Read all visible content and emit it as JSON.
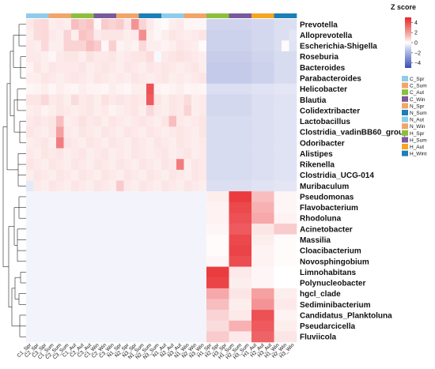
{
  "chart_data": {
    "type": "heatmap",
    "title": "",
    "xlabel": "",
    "ylabel": "",
    "legend": {
      "title": "Z score",
      "ticks": [
        4,
        2,
        0,
        -2,
        -4
      ],
      "range": [
        -5,
        5
      ],
      "placement": "top-right"
    },
    "group_legend": {
      "placement": "right",
      "items": [
        {
          "label": "C_Spr",
          "color": "#8ecde9"
        },
        {
          "label": "C_Sum",
          "color": "#f2a56a"
        },
        {
          "label": "C_Aut",
          "color": "#8bbf3c"
        },
        {
          "label": "C_Win",
          "color": "#7a5a9c"
        },
        {
          "label": "N_Spr",
          "color": "#f2a56a"
        },
        {
          "label": "N_Sum",
          "color": "#1b7fb8"
        },
        {
          "label": "N_Aut",
          "color": "#8ecde9"
        },
        {
          "label": "N_Win",
          "color": "#f2a56a"
        },
        {
          "label": "H_Spr",
          "color": "#8bbf3c"
        },
        {
          "label": "H_Sum",
          "color": "#7a5a9c"
        },
        {
          "label": "H_Aut",
          "color": "#f5a623"
        },
        {
          "label": "H_Wint",
          "color": "#1b7fb8"
        }
      ]
    },
    "group_bar_colors": [
      "#8ecde9",
      "#f2a56a",
      "#8bbf3c",
      "#7a5a9c",
      "#f2a56a",
      "#1b7fb8",
      "#8ecde9",
      "#f2a56a",
      "#8bbf3c",
      "#7a5a9c",
      "#f5a623",
      "#1b7fb8"
    ],
    "columns": [
      "C1_Spr",
      "C2_Spr",
      "C3_Spr",
      "C1_Sum",
      "C2_Sum",
      "C3_Sum",
      "C1_Aut",
      "C2_Aut",
      "C3_Aut",
      "C1_Win",
      "C2_Win",
      "C3_Win",
      "N1_Spr",
      "N2_Spr",
      "N3_Spr",
      "N1_Sum",
      "N2_Sum",
      "N3_Sum",
      "N1_Aut",
      "N2_Aut",
      "N3_Aut",
      "N1_Win",
      "N2_Win",
      "N3_Win",
      "H1_Spr",
      "H2_Spr",
      "H3_Spr",
      "H1_Sum",
      "H2_Sum",
      "H3_Sum",
      "H1_Aut",
      "H2_Aut",
      "H3_Aut",
      "H1_Win",
      "H2_Win",
      "H3_Win"
    ],
    "rows": [
      "Prevotella",
      "Alloprevotella",
      "Escherichia-Shigella",
      "Roseburia",
      "Bacteroides",
      "Parabacteroides",
      "Helicobacter",
      "Blautia",
      "Colidextribacter",
      "Lactobacillus",
      "Clostridia_vadinBB60_group",
      "Odoribacter",
      "Alistipes",
      "Rikenella",
      "Clostridia_UCG-014",
      "Muribaculum",
      "Pseudomonas",
      "Flavobacterium",
      "Rhodoluna",
      "Acinetobacter",
      "Massilia",
      "Cloacibacterium",
      "Novosphingobium",
      "Limnohabitans",
      "Polynucleobacter",
      "hgcl_clade",
      "Sediminibacterium",
      "Candidatus_Planktoluna",
      "Pseudarcicella",
      "Fluviicola"
    ],
    "values": [
      [
        0.5,
        0.8,
        0.9,
        0.4,
        0.5,
        0.4,
        1.5,
        1.2,
        1.4,
        0.2,
        1.2,
        1.0,
        1.2,
        0.6,
        2.5,
        1.0,
        0.5,
        0.2,
        0.1,
        0.4,
        0.5,
        0.2,
        0.2,
        0.2,
        -1.2,
        -1.2,
        -1.2,
        -1.2,
        -1.2,
        -1.2,
        -1.1,
        -1.1,
        -1.1,
        -0.9,
        -0.9,
        -0.9
      ],
      [
        0.4,
        0.8,
        0.9,
        0.5,
        0.4,
        1.0,
        0.4,
        1.4,
        1.2,
        0.5,
        0.6,
        0.6,
        0.6,
        0.4,
        0.5,
        2.6,
        0.4,
        0.2,
        0.4,
        0.6,
        0.5,
        0.4,
        0.5,
        0.6,
        -1.3,
        -1.3,
        -1.3,
        -1.3,
        -1.3,
        -1.3,
        -1.1,
        -1.1,
        -1.1,
        -0.9,
        -0.9,
        -0.7
      ],
      [
        0.5,
        0.4,
        0.9,
        0.4,
        0.4,
        1.0,
        1.0,
        1.0,
        1.5,
        1.2,
        0.2,
        1.1,
        0.3,
        0.4,
        0.3,
        0.9,
        0.4,
        0.4,
        0.3,
        0.4,
        0.6,
        0.5,
        0.4,
        0.1,
        -1.3,
        -1.3,
        -1.3,
        -1.3,
        -1.3,
        -1.3,
        -1.1,
        -1.1,
        -1.1,
        -0.9,
        0.1,
        -0.8
      ],
      [
        0.5,
        0.5,
        0.4,
        0.2,
        0.5,
        0.6,
        0.6,
        0.4,
        0.7,
        0.5,
        0.5,
        0.6,
        0.4,
        0.5,
        0.6,
        0.6,
        0.8,
        -0.2,
        0.5,
        0.6,
        0.7,
        0.6,
        0.5,
        0.4,
        -1.4,
        -1.4,
        -1.4,
        -1.4,
        -1.4,
        -1.4,
        -1.2,
        -1.2,
        -1.2,
        -1.0,
        -1.0,
        -1.0
      ],
      [
        0.3,
        0.6,
        0.4,
        0.6,
        0.5,
        0.5,
        0.5,
        0.6,
        0.4,
        0.5,
        0.6,
        0.5,
        0.4,
        0.6,
        0.5,
        0.4,
        0.6,
        0.5,
        0.6,
        0.5,
        0.4,
        0.5,
        0.6,
        0.4,
        -1.5,
        -1.5,
        -1.5,
        -1.5,
        -1.5,
        -1.5,
        -1.3,
        -1.3,
        -1.3,
        -1.0,
        -1.0,
        -1.0
      ],
      [
        0.4,
        0.4,
        0.6,
        0.5,
        0.4,
        0.5,
        0.6,
        0.5,
        0.4,
        0.6,
        0.5,
        0.4,
        0.5,
        0.4,
        0.6,
        0.5,
        0.4,
        0.5,
        0.6,
        0.4,
        0.5,
        0.4,
        0.5,
        0.6,
        -1.5,
        -1.5,
        -1.5,
        -1.5,
        -1.5,
        -1.5,
        -1.3,
        -1.3,
        -1.3,
        -1.0,
        -1.0,
        -1.0
      ],
      [
        0.2,
        0.3,
        0.4,
        0.2,
        0.4,
        0.3,
        0.2,
        0.4,
        0.3,
        0.3,
        0.2,
        0.4,
        0.3,
        0.2,
        0.4,
        0.4,
        4.0,
        0.3,
        0.2,
        0.3,
        0.4,
        0.2,
        0.3,
        0.2,
        -0.9,
        -0.9,
        -0.9,
        -0.9,
        -0.9,
        -0.9,
        -0.8,
        -0.8,
        -0.8,
        -0.7,
        -0.7,
        -0.7
      ],
      [
        0.6,
        0.6,
        0.9,
        0.5,
        0.6,
        0.4,
        0.8,
        0.5,
        0.6,
        0.4,
        0.7,
        0.5,
        0.6,
        0.5,
        0.6,
        0.5,
        3.8,
        0.6,
        0.4,
        0.6,
        0.5,
        0.8,
        0.4,
        0.5,
        -1.1,
        -1.1,
        -1.1,
        -1.1,
        -1.1,
        -1.1,
        -0.9,
        -0.9,
        -0.9,
        -0.8,
        -0.8,
        -0.8
      ],
      [
        0.4,
        0.5,
        0.3,
        0.4,
        0.6,
        0.5,
        0.4,
        0.5,
        0.6,
        0.4,
        0.5,
        0.3,
        0.4,
        0.5,
        0.6,
        0.4,
        0.9,
        0.5,
        0.4,
        0.6,
        0.5,
        1.0,
        0.4,
        0.5,
        -1.1,
        -1.1,
        -1.1,
        -1.1,
        -1.1,
        -1.1,
        -0.9,
        -0.9,
        -0.9,
        -0.8,
        -0.8,
        -0.8
      ],
      [
        0.5,
        0.6,
        0.5,
        0.6,
        1.5,
        0.4,
        0.5,
        0.7,
        0.5,
        0.6,
        0.4,
        0.6,
        0.5,
        0.4,
        0.5,
        0.6,
        0.5,
        0.4,
        0.6,
        1.5,
        0.5,
        0.4,
        0.5,
        0.6,
        -1.0,
        -1.0,
        -1.0,
        -1.0,
        -1.0,
        -1.0,
        -0.9,
        -0.9,
        -0.9,
        -0.8,
        -0.8,
        -0.8
      ],
      [
        0.6,
        0.5,
        0.4,
        0.6,
        2.2,
        0.5,
        0.4,
        0.6,
        0.5,
        0.4,
        0.6,
        0.5,
        0.4,
        0.6,
        0.5,
        0.4,
        0.6,
        0.5,
        0.4,
        0.5,
        0.6,
        0.5,
        0.4,
        0.6,
        -1.0,
        -1.0,
        -1.0,
        -1.0,
        -1.0,
        -1.0,
        -0.9,
        -0.9,
        -0.9,
        -0.8,
        -0.8,
        -0.8
      ],
      [
        0.4,
        0.5,
        0.6,
        0.4,
        3.0,
        0.6,
        0.5,
        0.4,
        0.6,
        0.5,
        0.4,
        0.6,
        0.5,
        0.4,
        0.6,
        0.5,
        0.4,
        0.6,
        0.5,
        0.4,
        0.6,
        0.5,
        0.4,
        0.5,
        -1.0,
        -1.0,
        -1.0,
        -1.0,
        -1.0,
        -1.0,
        -0.9,
        -0.9,
        -0.9,
        -0.8,
        -0.8,
        -0.8
      ],
      [
        0.5,
        0.4,
        0.6,
        0.5,
        0.6,
        0.4,
        0.5,
        0.6,
        0.4,
        0.5,
        0.6,
        0.4,
        0.5,
        0.4,
        0.6,
        0.5,
        0.4,
        0.5,
        0.6,
        0.4,
        0.5,
        0.6,
        0.4,
        0.5,
        -1.0,
        -1.0,
        -1.0,
        -1.0,
        -1.0,
        -1.0,
        -0.9,
        -0.9,
        -0.9,
        -0.8,
        -0.8,
        -0.8
      ],
      [
        0.6,
        0.5,
        0.4,
        0.6,
        0.5,
        0.4,
        0.6,
        0.5,
        0.4,
        0.6,
        0.5,
        0.4,
        0.6,
        0.5,
        0.4,
        0.6,
        0.5,
        0.4,
        0.6,
        0.5,
        3.0,
        0.4,
        0.6,
        0.5,
        -1.0,
        -1.0,
        -1.0,
        -1.0,
        -1.0,
        -1.0,
        -0.9,
        -0.9,
        -0.9,
        -0.8,
        -0.8,
        -0.8
      ],
      [
        0.4,
        0.6,
        0.5,
        0.4,
        0.6,
        0.5,
        0.4,
        0.6,
        0.5,
        0.4,
        0.6,
        0.5,
        0.4,
        0.6,
        0.5,
        0.4,
        0.6,
        0.5,
        0.4,
        0.6,
        0.5,
        0.4,
        0.6,
        0.5,
        -1.0,
        -1.0,
        -1.0,
        -1.0,
        -1.0,
        -1.0,
        -0.9,
        -0.9,
        -0.9,
        -0.8,
        -0.8,
        -0.8
      ],
      [
        -0.6,
        0.5,
        0.4,
        0.6,
        0.5,
        0.4,
        0.6,
        0.5,
        0.4,
        0.6,
        0.5,
        0.4,
        1.2,
        0.5,
        0.4,
        0.6,
        0.5,
        0.4,
        0.6,
        0.5,
        0.4,
        0.6,
        0.5,
        0.4,
        -0.9,
        -0.9,
        -0.9,
        -0.9,
        -0.9,
        -0.9,
        -0.8,
        -0.8,
        -0.8,
        -0.7,
        -0.7,
        -0.7
      ],
      [
        -0.3,
        -0.3,
        -0.3,
        -0.3,
        -0.3,
        -0.3,
        -0.3,
        -0.3,
        -0.3,
        -0.3,
        -0.3,
        -0.3,
        -0.3,
        -0.3,
        -0.3,
        -0.3,
        -0.3,
        -0.3,
        -0.3,
        -0.3,
        -0.3,
        -0.3,
        -0.3,
        -0.3,
        0.4,
        0.4,
        0.4,
        4.5,
        4.5,
        4.5,
        1.5,
        1.5,
        1.5,
        0.2,
        0.2,
        0.2
      ],
      [
        -0.3,
        -0.3,
        -0.3,
        -0.3,
        -0.3,
        -0.3,
        -0.3,
        -0.3,
        -0.3,
        -0.3,
        -0.3,
        -0.3,
        -0.3,
        -0.3,
        -0.3,
        -0.3,
        -0.3,
        -0.3,
        -0.3,
        -0.3,
        -0.3,
        -0.3,
        -0.3,
        -0.3,
        0.3,
        0.3,
        0.3,
        4.2,
        4.2,
        4.2,
        1.8,
        1.8,
        1.8,
        0.2,
        0.2,
        0.2
      ],
      [
        -0.3,
        -0.3,
        -0.3,
        -0.3,
        -0.3,
        -0.3,
        -0.3,
        -0.3,
        -0.3,
        -0.3,
        -0.3,
        -0.3,
        -0.3,
        -0.3,
        -0.3,
        -0.3,
        -0.3,
        -0.3,
        -0.3,
        -0.3,
        -0.3,
        -0.3,
        -0.3,
        -0.3,
        0.3,
        0.3,
        0.3,
        4.0,
        4.0,
        4.0,
        2.0,
        2.0,
        2.0,
        0.3,
        0.3,
        0.3
      ],
      [
        -0.3,
        -0.3,
        -0.3,
        -0.3,
        -0.3,
        -0.3,
        -0.3,
        -0.3,
        -0.3,
        -0.3,
        -0.3,
        -0.3,
        -0.3,
        -0.3,
        -0.3,
        -0.3,
        -0.3,
        -0.3,
        -0.3,
        -0.3,
        -0.3,
        -0.3,
        -0.3,
        -0.3,
        0.2,
        0.2,
        0.2,
        3.8,
        3.8,
        3.8,
        0.6,
        0.6,
        0.6,
        1.2,
        1.2,
        1.2
      ],
      [
        -0.3,
        -0.3,
        -0.3,
        -0.3,
        -0.3,
        -0.3,
        -0.3,
        -0.3,
        -0.3,
        -0.3,
        -0.3,
        -0.3,
        -0.3,
        -0.3,
        -0.3,
        -0.3,
        -0.3,
        -0.3,
        -0.3,
        -0.3,
        -0.3,
        -0.3,
        -0.3,
        -0.3,
        0.1,
        0.1,
        0.1,
        4.2,
        4.2,
        4.2,
        0.4,
        0.4,
        0.4,
        0.1,
        0.1,
        0.1
      ],
      [
        -0.3,
        -0.3,
        -0.3,
        -0.3,
        -0.3,
        -0.3,
        -0.3,
        -0.3,
        -0.3,
        -0.3,
        -0.3,
        -0.3,
        -0.3,
        -0.3,
        -0.3,
        -0.3,
        -0.3,
        -0.3,
        -0.3,
        -0.3,
        -0.3,
        -0.3,
        -0.3,
        -0.3,
        0.1,
        0.1,
        0.1,
        4.3,
        4.3,
        4.3,
        0.3,
        0.3,
        0.3,
        0.1,
        0.1,
        0.1
      ],
      [
        -0.3,
        -0.3,
        -0.3,
        -0.3,
        -0.3,
        -0.3,
        -0.3,
        -0.3,
        -0.3,
        -0.3,
        -0.3,
        -0.3,
        -0.3,
        -0.3,
        -0.3,
        -0.3,
        -0.3,
        -0.3,
        -0.3,
        -0.3,
        -0.3,
        -0.3,
        -0.3,
        -0.3,
        0.2,
        0.2,
        0.2,
        4.1,
        4.1,
        4.1,
        0.3,
        0.3,
        0.3,
        0.1,
        0.1,
        0.1
      ],
      [
        -0.3,
        -0.3,
        -0.3,
        -0.3,
        -0.3,
        -0.3,
        -0.3,
        -0.3,
        -0.3,
        -0.3,
        -0.3,
        -0.3,
        -0.3,
        -0.3,
        -0.3,
        -0.3,
        -0.3,
        -0.3,
        -0.3,
        -0.3,
        -0.3,
        -0.3,
        -0.3,
        -0.3,
        4.5,
        4.5,
        4.5,
        0.5,
        0.5,
        0.5,
        0.2,
        0.2,
        0.2,
        0.0,
        0.0,
        0.0
      ],
      [
        -0.3,
        -0.3,
        -0.3,
        -0.3,
        -0.3,
        -0.3,
        -0.3,
        -0.3,
        -0.3,
        -0.3,
        -0.3,
        -0.3,
        -0.3,
        -0.3,
        -0.3,
        -0.3,
        -0.3,
        -0.3,
        -0.3,
        -0.3,
        -0.3,
        -0.3,
        -0.3,
        -0.3,
        4.3,
        4.3,
        4.3,
        0.4,
        0.4,
        0.4,
        0.2,
        0.2,
        0.2,
        0.0,
        0.0,
        0.0
      ],
      [
        -0.3,
        -0.3,
        -0.3,
        -0.3,
        -0.3,
        -0.3,
        -0.3,
        -0.3,
        -0.3,
        -0.3,
        -0.3,
        -0.3,
        -0.3,
        -0.3,
        -0.3,
        -0.3,
        -0.3,
        -0.3,
        -0.3,
        -0.3,
        -0.3,
        -0.3,
        -0.3,
        -0.3,
        2.0,
        2.0,
        2.0,
        0.6,
        0.6,
        0.6,
        2.2,
        2.2,
        2.2,
        0.4,
        0.4,
        0.4
      ],
      [
        -0.3,
        -0.3,
        -0.3,
        -0.3,
        -0.3,
        -0.3,
        -0.3,
        -0.3,
        -0.3,
        -0.3,
        -0.3,
        -0.3,
        -0.3,
        -0.3,
        -0.3,
        -0.3,
        -0.3,
        -0.3,
        -0.3,
        -0.3,
        -0.3,
        -0.3,
        -0.3,
        -0.3,
        1.5,
        1.5,
        1.5,
        0.4,
        0.4,
        0.4,
        2.5,
        2.5,
        2.5,
        0.5,
        0.5,
        0.5
      ],
      [
        -0.3,
        -0.3,
        -0.3,
        -0.3,
        -0.3,
        -0.3,
        -0.3,
        -0.3,
        -0.3,
        -0.3,
        -0.3,
        -0.3,
        -0.3,
        -0.3,
        -0.3,
        -0.3,
        -0.3,
        -0.3,
        -0.3,
        -0.3,
        -0.3,
        -0.3,
        -0.3,
        -0.3,
        1.0,
        1.0,
        1.0,
        0.5,
        0.5,
        0.5,
        4.0,
        4.0,
        4.0,
        0.3,
        0.3,
        0.3
      ],
      [
        -0.3,
        -0.3,
        -0.3,
        -0.3,
        -0.3,
        -0.3,
        -0.3,
        -0.3,
        -0.3,
        -0.3,
        -0.3,
        -0.3,
        -0.3,
        -0.3,
        -0.3,
        -0.3,
        -0.3,
        -0.3,
        -0.3,
        -0.3,
        -0.3,
        -0.3,
        -0.3,
        -0.3,
        0.8,
        0.8,
        0.8,
        1.8,
        1.8,
        1.8,
        3.8,
        3.8,
        3.8,
        0.4,
        0.4,
        0.4
      ],
      [
        -0.3,
        -0.3,
        -0.3,
        -0.3,
        -0.3,
        -0.3,
        -0.3,
        -0.3,
        -0.3,
        -0.3,
        -0.3,
        -0.3,
        -0.3,
        -0.3,
        -0.3,
        -0.3,
        -0.3,
        -0.3,
        -0.3,
        -0.3,
        -0.3,
        -0.3,
        -0.3,
        -0.3,
        1.2,
        1.2,
        1.2,
        0.5,
        0.5,
        0.5,
        3.6,
        3.6,
        3.6,
        0.6,
        0.6,
        0.6
      ]
    ]
  }
}
